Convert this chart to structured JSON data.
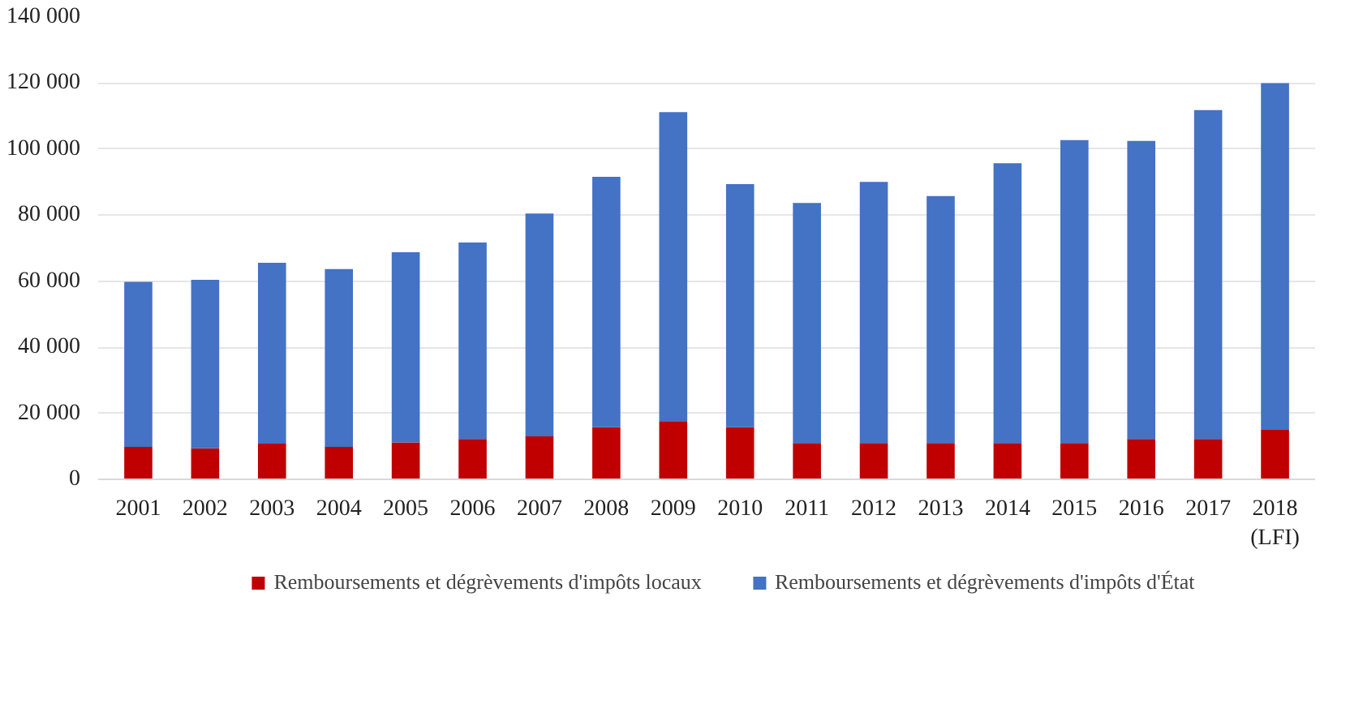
{
  "chart_data": {
    "type": "bar",
    "stacked": true,
    "categories": [
      "2001",
      "2002",
      "2003",
      "2004",
      "2005",
      "2006",
      "2007",
      "2008",
      "2009",
      "2010",
      "2011",
      "2012",
      "2013",
      "2014",
      "2015",
      "2016",
      "2017",
      "2018\n(LFI)"
    ],
    "series": [
      {
        "name": "Remboursements et dégrèvements d'impôts locaux",
        "color": "#c00000",
        "values": [
          9800,
          9400,
          10800,
          9800,
          11200,
          12200,
          13000,
          15800,
          17600,
          15800,
          11000,
          11000,
          11000,
          11000,
          11000,
          12200,
          12200,
          15000
        ]
      },
      {
        "name": "Remboursements et dégrèvements d'impôts d'État",
        "color": "#4472c4",
        "values": [
          50000,
          51000,
          54800,
          53900,
          57600,
          59500,
          67500,
          75800,
          93600,
          73600,
          72700,
          79100,
          74800,
          84700,
          91700,
          90300,
          99600,
          105000
        ]
      }
    ],
    "ylim": [
      0,
      140000
    ],
    "yticks": [
      {
        "value": 0,
        "label": "0"
      },
      {
        "value": 20000,
        "label": "20 000"
      },
      {
        "value": 40000,
        "label": "40 000"
      },
      {
        "value": 60000,
        "label": "60 000"
      },
      {
        "value": 80000,
        "label": "80 000"
      },
      {
        "value": 100000,
        "label": "100 000"
      },
      {
        "value": 120000,
        "label": "120 000"
      },
      {
        "value": 140000,
        "label": "140 000"
      }
    ],
    "grid": "y",
    "legend": "bottom"
  }
}
